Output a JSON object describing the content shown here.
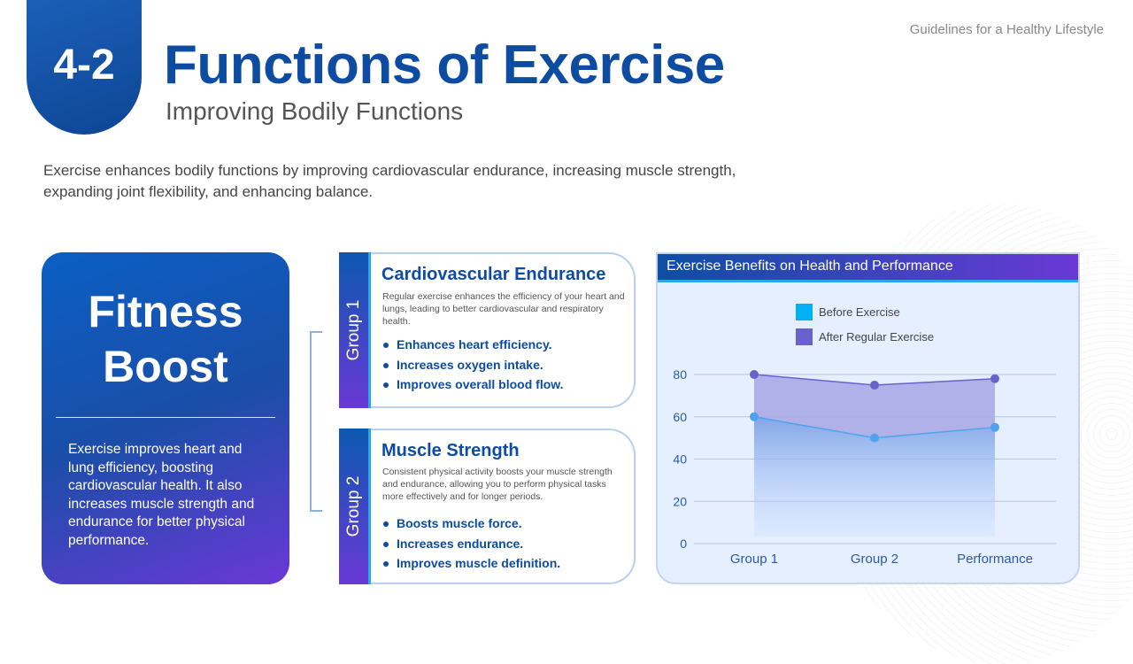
{
  "header": {
    "badge": "4-2",
    "title": "Functions of Exercise",
    "subtitle": "Improving Bodily Functions",
    "top_right": "Guidelines for a Healthy Lifestyle"
  },
  "intro": "Exercise enhances bodily functions by improving cardiovascular endurance, increasing muscle strength, expanding joint flexibility, and enhancing balance.",
  "fitness": {
    "title_line1": "Fitness",
    "title_line2": "Boost",
    "text": "Exercise improves heart and lung efficiency, boosting cardiovascular health. It also increases muscle strength and endurance for better physical performance."
  },
  "groups": [
    {
      "label": "Group 1",
      "title": "Cardiovascular Endurance",
      "desc": "Regular exercise enhances the efficiency of your heart and lungs, leading to better cardiovascular and respiratory health.",
      "bullets": [
        "Enhances heart efficiency.",
        "Increases oxygen intake.",
        "Improves overall blood flow."
      ]
    },
    {
      "label": "Group 2",
      "title": "Muscle Strength",
      "desc": "Consistent physical activity boosts your muscle strength and endurance, allowing you to perform physical tasks more effectively and for longer periods.",
      "bullets": [
        "Boosts muscle force.",
        "Increases endurance.",
        "Improves muscle definition."
      ]
    }
  ],
  "chart_data": {
    "type": "area",
    "title": "Exercise Benefits on Health and Performance",
    "categories": [
      "Group 1",
      "Group 2",
      "Performance"
    ],
    "series": [
      {
        "name": "Before Exercise",
        "values": [
          60,
          50,
          55
        ],
        "color": "#1aaef0"
      },
      {
        "name": "After Regular Exercise",
        "values": [
          80,
          75,
          78
        ],
        "color": "#6a62cc"
      }
    ],
    "yticks": [
      "0",
      "20",
      "40",
      "60",
      "80"
    ],
    "ylim": [
      0,
      80
    ],
    "grid": true,
    "legend": "top-center"
  }
}
